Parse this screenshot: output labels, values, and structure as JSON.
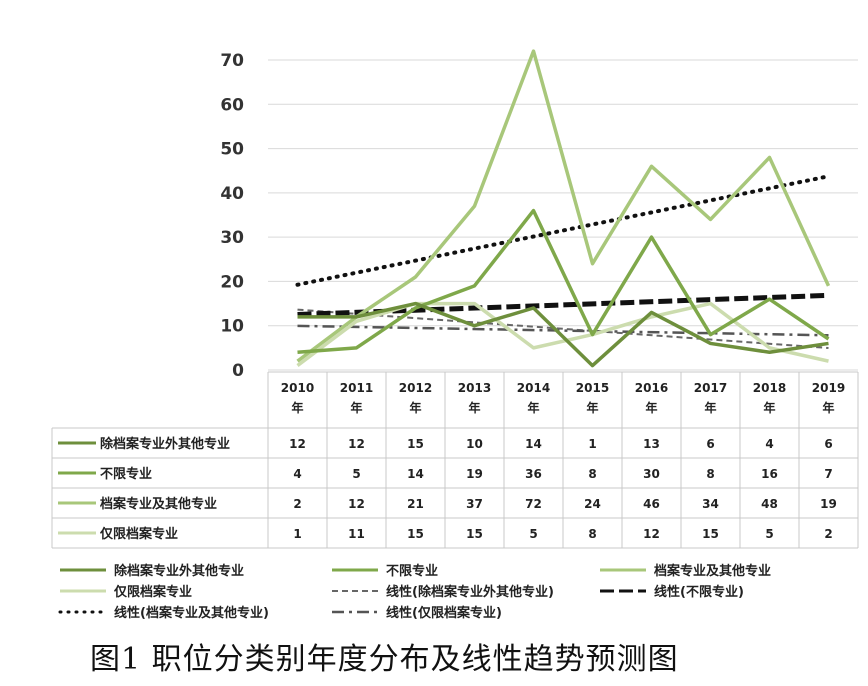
{
  "caption": "图1 职位分类别年度分布及线性趋势预测图",
  "chart_data": {
    "type": "line",
    "title": "",
    "x_rows": [
      [
        "2010",
        "年"
      ],
      [
        "2011",
        "年"
      ],
      [
        "2012",
        "年"
      ],
      [
        "2013",
        "年"
      ],
      [
        "2014",
        "年"
      ],
      [
        "2015",
        "年"
      ],
      [
        "2016",
        "年"
      ],
      [
        "2017",
        "年"
      ],
      [
        "2018",
        "年"
      ],
      [
        "2019",
        "年"
      ]
    ],
    "ylim": [
      0,
      70
    ],
    "yticks": [
      0,
      10,
      20,
      30,
      40,
      50,
      60,
      70
    ],
    "grid": true,
    "series": [
      {
        "name": "除档案专业外其他专业",
        "values": [
          12,
          12,
          15,
          10,
          14,
          1,
          13,
          6,
          4,
          6
        ],
        "color": "#6e8f3c"
      },
      {
        "name": "不限专业",
        "values": [
          4,
          5,
          14,
          19,
          36,
          8,
          30,
          8,
          16,
          7
        ],
        "color": "#7fa84a"
      },
      {
        "name": "档案专业及其他专业",
        "values": [
          2,
          12,
          21,
          37,
          72,
          24,
          46,
          34,
          48,
          19
        ],
        "color": "#a8c77a"
      },
      {
        "name": "仅限档案专业",
        "values": [
          1,
          11,
          15,
          15,
          5,
          8,
          12,
          15,
          5,
          2
        ],
        "color": "#ccdcae"
      }
    ],
    "trendlines": [
      {
        "name": "线性(除档案专业外其他专业)",
        "series_index": 0,
        "style": "dashed-thin",
        "color": "#666666"
      },
      {
        "name": "线性(不限专业)",
        "series_index": 1,
        "style": "dashed-bold",
        "color": "#111111"
      },
      {
        "name": "线性(档案专业及其他专业)",
        "series_index": 2,
        "style": "dotted",
        "color": "#111111"
      },
      {
        "name": "线性(仅限档案专业)",
        "series_index": 3,
        "style": "dashdot",
        "color": "#555555"
      }
    ],
    "legend_position": "bottom"
  }
}
